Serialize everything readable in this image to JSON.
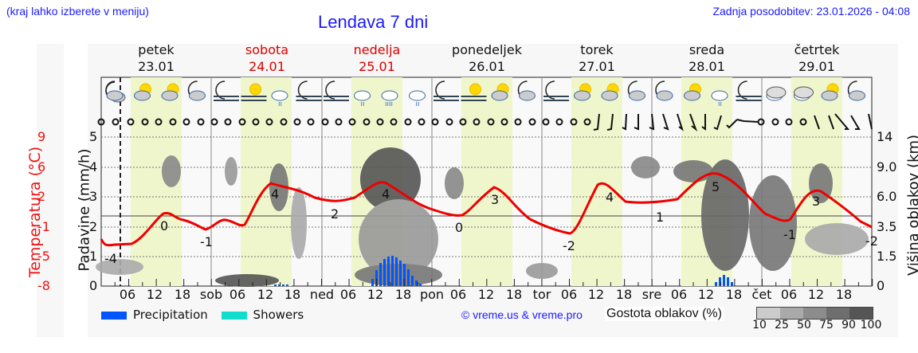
{
  "header": {
    "menu_hint": "(kraj lahko izberete v meniju)",
    "title": "Lendava 7 dni",
    "updated": "Zadnja posodobitev: 23.01.2026 - 04:08"
  },
  "days": [
    {
      "name": "petek",
      "date": "23.01",
      "weekend": false
    },
    {
      "name": "sobota",
      "date": "24.01",
      "weekend": true
    },
    {
      "name": "nedelja",
      "date": "25.01",
      "weekend": true
    },
    {
      "name": "ponedeljek",
      "date": "26.01",
      "weekend": false
    },
    {
      "name": "torek",
      "date": "27.01",
      "weekend": false
    },
    {
      "name": "sreda",
      "date": "28.01",
      "weekend": false
    },
    {
      "name": "četrtek",
      "date": "29.01",
      "weekend": false
    }
  ],
  "weather_icons": [
    "moon-cloud",
    "sun-cloud",
    "sun-cloud",
    "moon-cloud",
    "moon-fog",
    "sun-fog",
    "cloud-drizzle",
    "moon-fog",
    "moon-fog",
    "cloud-drizzle",
    "cloud-rain",
    "cloud-drizzle",
    "moon-fog",
    "sun-fog",
    "sun-cloud",
    "moon-cloud",
    "moon-fog",
    "sun-cloud",
    "sun-cloud",
    "moon-cloud",
    "moon-cloud",
    "sun-cloud",
    "cloud-drizzle",
    "moon-fog",
    "cloud",
    "cloud",
    "sun-cloud",
    "moon-cloud"
  ],
  "axes": {
    "temp_label": "Temperatura (°C)",
    "temp_ticks": [
      "9",
      "6",
      "2",
      "-1",
      "-5",
      "-8"
    ],
    "rain_label": "Padavine (mm/h)",
    "rain_ticks": [
      "5",
      "4",
      "3",
      "2",
      "1",
      "0"
    ],
    "cloud_label": "Višina oblakov (km)",
    "cloud_ticks": [
      "14",
      "9.0",
      "6.0",
      "3.5",
      "1.5",
      "0"
    ],
    "x_ticks": [
      "06",
      "12",
      "18",
      "sob",
      "06",
      "12",
      "18",
      "ned",
      "06",
      "12",
      "18",
      "pon",
      "06",
      "12",
      "18",
      "tor",
      "06",
      "12",
      "18",
      "sre",
      "06",
      "12",
      "18",
      "čet",
      "06",
      "12",
      "18"
    ]
  },
  "legend": {
    "precipitation": "Precipitation",
    "showers": "Showers",
    "precip_color": "#0055ff",
    "showers_color": "#11ddcc",
    "copyright": "© vreme.us & vreme.pro",
    "density_label": "Gostota oblakov (%)",
    "density_ticks": [
      "10",
      "25",
      "50",
      "75",
      "90",
      "100"
    ],
    "density_colors": [
      "#cccccc",
      "#aaaaaa",
      "#8c8c8c",
      "#6e6e6e",
      "#555555"
    ]
  },
  "chart_data": {
    "type": "line",
    "title": "Lendava 7 dni",
    "xlabel": "",
    "ylabel": "Temperatura (°C)",
    "y2label": "Padavine (mm/h)",
    "y3label": "Višina oblakov (km)",
    "ylim_temp": [
      -8,
      9
    ],
    "ylim_rain": [
      0,
      5
    ],
    "x": [
      "Fri 00",
      "Fri 03",
      "Fri 06",
      "Fri 09",
      "Fri 12",
      "Fri 15",
      "Fri 18",
      "Fri 21",
      "Sat 00",
      "Sat 03",
      "Sat 06",
      "Sat 09",
      "Sat 12",
      "Sat 15",
      "Sat 18",
      "Sat 21",
      "Sun 00",
      "Sun 03",
      "Sun 06",
      "Sun 09",
      "Sun 12",
      "Sun 15",
      "Sun 18",
      "Sun 21",
      "Mon 00",
      "Mon 03",
      "Mon 06",
      "Mon 09",
      "Mon 12",
      "Mon 15",
      "Mon 18",
      "Mon 21",
      "Tue 00",
      "Tue 03",
      "Tue 06",
      "Tue 09",
      "Tue 12",
      "Tue 15",
      "Tue 18",
      "Tue 21",
      "Wed 00",
      "Wed 03",
      "Wed 06",
      "Wed 09",
      "Wed 12",
      "Wed 15",
      "Wed 18",
      "Wed 21",
      "Thu 00",
      "Thu 03",
      "Thu 06",
      "Thu 09",
      "Thu 12",
      "Thu 15",
      "Thu 18",
      "Thu 21"
    ],
    "series": [
      {
        "name": "Temperatura",
        "color": "#ee0000",
        "values": [
          -3.5,
          -4,
          -4,
          -3.5,
          -0.5,
          0,
          -0.5,
          -1,
          -1.5,
          -0.8,
          -1,
          3.5,
          4,
          3.5,
          3,
          2.7,
          2.5,
          2.5,
          3,
          4,
          4,
          3,
          2.2,
          1.5,
          1,
          0.5,
          0,
          1,
          3,
          2.5,
          0.8,
          -0.5,
          -1.3,
          -2,
          -2,
          2,
          4,
          2.5,
          1.8,
          1.9,
          1.7,
          1.8,
          2,
          4.5,
          5,
          4,
          2,
          0,
          -0.6,
          -1,
          -1,
          1.5,
          3,
          2.2,
          1,
          -0.5
        ]
      },
      {
        "name": "Precipitation (mm/h)",
        "color": "#0055ff",
        "values": [
          0,
          0,
          0,
          0,
          0,
          0,
          0,
          0,
          0,
          0,
          0,
          0,
          0,
          0.05,
          0.05,
          0,
          0,
          0,
          0,
          0.3,
          0.9,
          0.9,
          0.4,
          0.05,
          0,
          0,
          0,
          0,
          0,
          0,
          0,
          0,
          0,
          0,
          0,
          0,
          0,
          0,
          0,
          0,
          0,
          0,
          0,
          0,
          0.4,
          0.2,
          0,
          0,
          0,
          0,
          0,
          0,
          0,
          0,
          0,
          0
        ]
      }
    ],
    "labels": [
      {
        "text": "-4"
      },
      {
        "text": "0"
      },
      {
        "text": "-1"
      },
      {
        "text": "4"
      },
      {
        "text": "2"
      },
      {
        "text": "4"
      },
      {
        "text": "0"
      },
      {
        "text": "3"
      },
      {
        "text": "-2"
      },
      {
        "text": "4"
      },
      {
        "text": "1"
      },
      {
        "text": "5"
      },
      {
        "text": "-1"
      },
      {
        "text": "3"
      },
      {
        "text": "-2"
      }
    ],
    "grid": true
  }
}
